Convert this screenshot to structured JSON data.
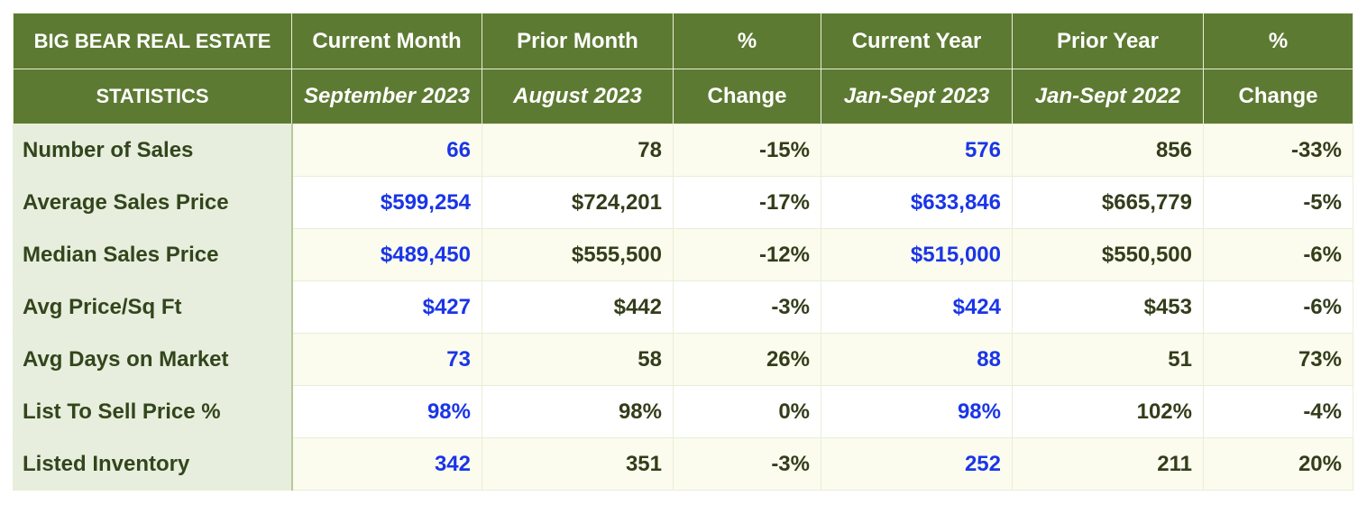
{
  "table": {
    "title_line1": "BIG BEAR REAL ESTATE",
    "title_line2": "STATISTICS",
    "headers_line1": [
      "Current Month",
      "Prior Month",
      "%",
      "Current Year",
      "Prior Year",
      "%"
    ],
    "headers_line2": [
      "September 2023",
      "August 2023",
      "Change",
      "Jan-Sept 2023",
      "Jan-Sept 2022",
      "Change"
    ],
    "rows": [
      {
        "label": "Number of Sales",
        "values": [
          "66",
          "78",
          "-15%",
          "576",
          "856",
          "-33%"
        ]
      },
      {
        "label": "Average Sales Price",
        "values": [
          "$599,254",
          "$724,201",
          "-17%",
          "$633,846",
          "$665,779",
          "-5%"
        ]
      },
      {
        "label": "Median Sales Price",
        "values": [
          "$489,450",
          "$555,500",
          "-12%",
          "$515,000",
          "$550,500",
          "-6%"
        ]
      },
      {
        "label": "Avg Price/Sq Ft",
        "values": [
          "$427",
          "$442",
          "-3%",
          "$424",
          "$453",
          "-6%"
        ]
      },
      {
        "label": "Avg Days on Market",
        "values": [
          "73",
          "58",
          "26%",
          "88",
          "51",
          "73%"
        ]
      },
      {
        "label": "List To Sell Price %",
        "values": [
          "98%",
          "98%",
          "0%",
          "98%",
          "102%",
          "-4%"
        ]
      },
      {
        "label": "Listed Inventory",
        "values": [
          "342",
          "351",
          "-3%",
          "252",
          "211",
          "20%"
        ]
      }
    ]
  },
  "colors": {
    "header_bg": "#5d7a32",
    "label_bg": "#e7eedd",
    "highlight_value": "#1a35e8",
    "text": "#333d1a"
  }
}
